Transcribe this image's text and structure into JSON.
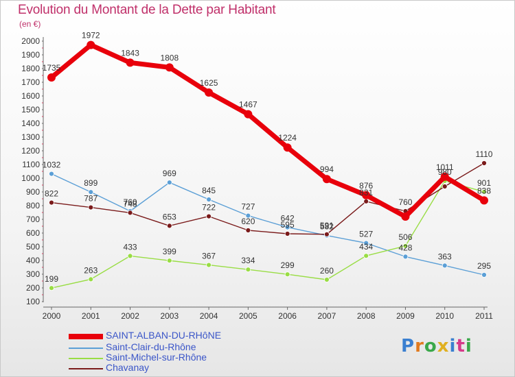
{
  "title": "Evolution du Montant de la Dette par Habitant",
  "subtitle": "(en €)",
  "logo": {
    "text": "Proxiti",
    "colors": [
      "#3a7fd0",
      "#e07a1e",
      "#3aa84a",
      "#e0b020",
      "#3a7fd0",
      "#d63a8a",
      "#3aa84a"
    ]
  },
  "chart_data": {
    "type": "line",
    "x": [
      "2000",
      "2001",
      "2002",
      "2003",
      "2004",
      "2005",
      "2006",
      "2007",
      "2008",
      "2009",
      "2010",
      "2011"
    ],
    "ylim": [
      100,
      2000
    ],
    "yticks": [
      100,
      200,
      300,
      400,
      500,
      600,
      700,
      800,
      900,
      1000,
      1100,
      1200,
      1300,
      1400,
      1500,
      1600,
      1700,
      1800,
      1900,
      2000
    ],
    "grid": false,
    "legend_position": "bottom-left",
    "series": [
      {
        "name": "SAINT-ALBAN-DU-RHôNE",
        "color": "#e8000b",
        "width": 7,
        "marker": 6,
        "values": [
          1735,
          1972,
          1843,
          1808,
          1625,
          1467,
          1224,
          994,
          876,
          720,
          1011,
          838
        ],
        "labels": [
          "1735",
          "1972",
          "1843",
          "1808",
          "1625",
          "1467",
          "1224",
          "994",
          "876",
          "",
          "1011",
          "838"
        ]
      },
      {
        "name": "Saint-Clair-du-Rhône",
        "color": "#5b9fd6",
        "width": 1.4,
        "marker": 3.5,
        "values": [
          1032,
          899,
          760,
          969,
          845,
          727,
          642,
          582,
          527,
          428,
          363,
          295
        ],
        "labels": [
          "1032",
          "899",
          "760",
          "969",
          "845",
          "727",
          "642",
          "582",
          "527",
          "428",
          "363",
          "295"
        ]
      },
      {
        "name": "Saint-Michel-sur-Rhône",
        "color": "#99dd44",
        "width": 1.4,
        "marker": 3.5,
        "values": [
          199,
          263,
          433,
          399,
          367,
          334,
          299,
          260,
          434,
          506,
          980,
          901
        ],
        "labels": [
          "199",
          "263",
          "433",
          "399",
          "367",
          "334",
          "299",
          "260",
          "434",
          "506",
          "980",
          "901"
        ]
      },
      {
        "name": "Chavanay",
        "color": "#7a1a1a",
        "width": 1.4,
        "marker": 3.5,
        "values": [
          822,
          787,
          748,
          653,
          722,
          620,
          595,
          591,
          831,
          760,
          940,
          1110
        ],
        "labels": [
          "822",
          "787",
          "748",
          "653",
          "722",
          "620",
          "595",
          "591",
          "831",
          "760",
          "",
          "1110"
        ]
      }
    ]
  }
}
